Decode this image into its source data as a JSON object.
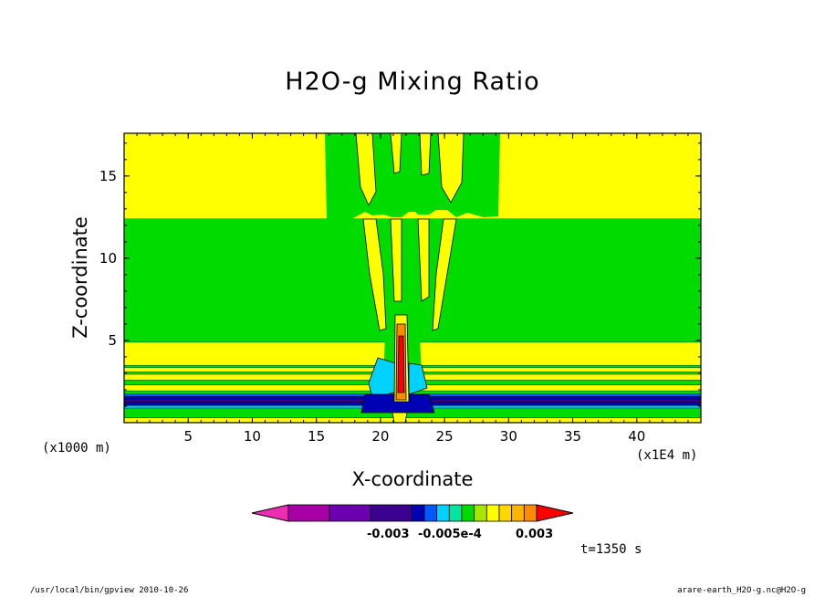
{
  "chart_data": {
    "type": "heatmap",
    "title": "H2O-g Mixing Ratio",
    "xlabel": "X-coordinate",
    "ylabel": "Z-coordinate",
    "x_unit_left": "(x1000 m)",
    "x_unit_right": "(x1E4 m)",
    "xlim": [
      0,
      45
    ],
    "ylim": [
      0,
      17.6
    ],
    "xticks": [
      5,
      10,
      15,
      20,
      25,
      30,
      35,
      40
    ],
    "yticks": [
      5,
      10,
      15
    ],
    "colorbar": {
      "colors": [
        "#ee2cb4",
        "#a600a6",
        "#6a00b0",
        "#3a0090",
        "#0000b4",
        "#005aff",
        "#00d2ff",
        "#00e6a0",
        "#00dc00",
        "#a6e600",
        "#ffff00",
        "#ffd700",
        "#ffb400",
        "#ff8c00",
        "#ff0000"
      ],
      "tick_labels": [
        "-0.003",
        "-0.005e-4",
        "0.003"
      ]
    },
    "bands": [
      {
        "z": [
          0.0,
          0.3
        ],
        "color": "#ffff00"
      },
      {
        "z": [
          0.3,
          0.9
        ],
        "color": "#00dc00"
      },
      {
        "z": [
          0.9,
          1.05
        ],
        "color": "#00d2ff"
      },
      {
        "z": [
          1.05,
          1.25
        ],
        "color": "#0000b4"
      },
      {
        "z": [
          1.25,
          1.4
        ],
        "color": "#3a0090"
      },
      {
        "z": [
          1.4,
          1.6
        ],
        "color": "#0000b4"
      },
      {
        "z": [
          1.6,
          1.75
        ],
        "color": "#005aff"
      },
      {
        "z": [
          1.75,
          1.95
        ],
        "color": "#00dc00"
      },
      {
        "z": [
          1.95,
          2.3
        ],
        "color": "#ffff00"
      },
      {
        "z": [
          2.3,
          2.6
        ],
        "color": "#00dc00"
      },
      {
        "z": [
          2.6,
          2.95
        ],
        "color": "#ffff00"
      },
      {
        "z": [
          2.95,
          3.1
        ],
        "color": "#00dc00"
      },
      {
        "z": [
          3.1,
          3.35
        ],
        "color": "#ffff00"
      },
      {
        "z": [
          3.35,
          3.5
        ],
        "color": "#00dc00"
      },
      {
        "z": [
          3.5,
          4.9
        ],
        "color": "#ffff00"
      },
      {
        "z": [
          4.9,
          12.4
        ],
        "color": "#00dc00"
      },
      {
        "z": [
          12.4,
          17.6
        ],
        "color": "#ffff00"
      }
    ],
    "time_label": "t=1350 s"
  },
  "footer": {
    "left": "/usr/local/bin/gpview   2010-10-26",
    "right": "arare-earth_H2O-g.nc@H2O-g"
  }
}
